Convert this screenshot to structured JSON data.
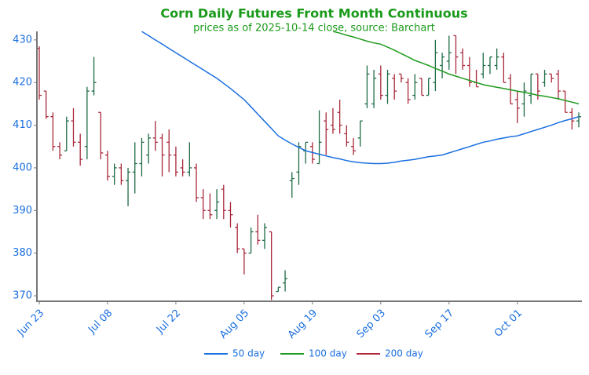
{
  "chart_data": {
    "type": "ohlc",
    "title": "Corn Daily Futures Front Month Continuous",
    "subtitle": "prices as of 2025-10-14 close, source: Barchart",
    "categories": [
      "Jun 23",
      null,
      null,
      null,
      null,
      null,
      null,
      null,
      null,
      null,
      "Jul 08",
      null,
      null,
      null,
      null,
      null,
      null,
      null,
      null,
      null,
      "Jul 22",
      null,
      null,
      null,
      null,
      null,
      null,
      null,
      null,
      null,
      "Aug 05",
      null,
      null,
      null,
      null,
      null,
      null,
      null,
      null,
      null,
      "Aug 19",
      null,
      null,
      null,
      null,
      null,
      null,
      null,
      null,
      null,
      "Sep 03",
      null,
      null,
      null,
      null,
      null,
      null,
      null,
      null,
      null,
      "Sep 17",
      null,
      null,
      null,
      null,
      null,
      null,
      null,
      null,
      null,
      "Oct 01",
      null,
      null,
      null,
      null,
      null,
      null,
      null,
      null,
      null
    ],
    "open": [
      428,
      418,
      412,
      405,
      404,
      411,
      406,
      405,
      418,
      413,
      403,
      398,
      400,
      397,
      399,
      401,
      403,
      407,
      407,
      406,
      403,
      400,
      399,
      400,
      393,
      390,
      390,
      395,
      390,
      386,
      381,
      380,
      385,
      383,
      385,
      371,
      373,
      397,
      399,
      404,
      405,
      401,
      411,
      410,
      413,
      408,
      405,
      407,
      415,
      415,
      422,
      417,
      421,
      422,
      420,
      417,
      421,
      417,
      420,
      424,
      425,
      431,
      427,
      424,
      420,
      422,
      424,
      424,
      426,
      421,
      416,
      415,
      417,
      422,
      420,
      422,
      422,
      418,
      413,
      411
    ],
    "high": [
      428.5,
      418,
      413,
      406,
      412,
      414,
      408,
      419,
      426,
      413,
      404,
      401,
      401,
      400,
      406,
      407,
      408,
      411,
      408,
      409,
      405,
      402,
      406,
      401,
      395,
      394,
      395,
      396,
      392,
      387,
      381,
      386,
      389,
      387,
      385,
      372,
      376,
      399,
      406,
      406,
      406,
      413.5,
      413,
      414,
      416,
      410,
      407,
      411,
      424,
      423,
      424,
      423,
      422,
      422,
      421,
      422,
      421,
      421,
      430,
      427,
      431,
      431,
      428,
      426,
      423,
      427,
      426,
      428,
      427,
      422,
      418,
      420,
      422,
      422,
      423,
      422,
      423,
      418,
      414,
      413
    ],
    "low": [
      416,
      411.5,
      404,
      402,
      404,
      405,
      400.5,
      402,
      417,
      402,
      397,
      396,
      396,
      391,
      394,
      398,
      401,
      404,
      398,
      399,
      398,
      398,
      398,
      392,
      388,
      388,
      388,
      388,
      386,
      380,
      375,
      380,
      382,
      381,
      369,
      371,
      371,
      393,
      396,
      401,
      401,
      401,
      403,
      408,
      408,
      405,
      403,
      405,
      414,
      414,
      416,
      415,
      416,
      420,
      415,
      416,
      417,
      417,
      418,
      421,
      423,
      422,
      423,
      419,
      419,
      421,
      422,
      423,
      420,
      415,
      410.5,
      412,
      415,
      416,
      419,
      420,
      416,
      413,
      409,
      409.5
    ],
    "close": [
      417,
      412,
      405,
      403,
      411,
      406,
      402,
      418,
      420,
      403.5,
      398,
      400,
      397,
      399,
      401,
      406,
      407,
      406,
      403,
      403,
      399,
      399,
      400,
      393,
      390,
      389,
      392,
      390,
      389,
      381,
      380,
      385,
      383,
      386,
      370,
      372,
      374,
      397.5,
      405,
      406,
      402,
      406,
      409,
      409,
      410,
      406,
      404,
      411,
      422,
      421,
      417,
      422,
      418,
      421,
      416,
      420,
      417,
      421,
      427,
      426,
      427,
      426,
      424,
      420,
      419,
      424,
      426,
      426,
      420,
      415,
      414,
      418,
      422,
      418,
      422,
      421,
      418,
      413,
      411,
      412
    ],
    "up_color": "#1e6b45",
    "down_color": "#a8283a",
    "series": [
      {
        "name": "50 day",
        "color": "#1a6fe0",
        "values": [
          null,
          null,
          null,
          null,
          null,
          null,
          null,
          null,
          null,
          null,
          null,
          null,
          null,
          null,
          null,
          432,
          431,
          430,
          429,
          428,
          427,
          426,
          425,
          424,
          423,
          422,
          421,
          419.8,
          418.6,
          417.3,
          416,
          414.3,
          412.6,
          410.9,
          409.2,
          407.5,
          406.5,
          405.6,
          404.8,
          404,
          403.6,
          403.2,
          402.8,
          402.4,
          402.1,
          401.7,
          401.4,
          401.2,
          401.1,
          401,
          401,
          401.1,
          401.3,
          401.6,
          401.8,
          402,
          402.3,
          402.6,
          402.8,
          403,
          403.5,
          404,
          404.5,
          405,
          405.5,
          406,
          406.3,
          406.7,
          407,
          407.3,
          407.5,
          408,
          408.5,
          409,
          409.5,
          410,
          410.6,
          411.1,
          411.5,
          412
        ]
      },
      {
        "name": "100 day",
        "color": "#1e9a1e",
        "values": [
          null,
          null,
          null,
          null,
          null,
          null,
          null,
          null,
          null,
          null,
          null,
          null,
          null,
          null,
          null,
          null,
          null,
          null,
          null,
          null,
          null,
          null,
          null,
          null,
          null,
          null,
          null,
          null,
          null,
          null,
          null,
          null,
          null,
          null,
          null,
          null,
          null,
          null,
          null,
          null,
          null,
          null,
          null,
          432,
          431.6,
          431.1,
          430.7,
          430.2,
          429.7,
          429.3,
          429,
          428.3,
          427.6,
          426.8,
          426,
          425.2,
          424.6,
          424,
          423.3,
          422.7,
          422,
          421.5,
          421,
          420.5,
          420,
          419.5,
          419.2,
          418.9,
          418.6,
          418.3,
          418,
          417.7,
          417.4,
          417,
          416.8,
          416.5,
          416.2,
          415.8,
          415.4,
          415
        ]
      },
      {
        "name": "200 day",
        "color": "#b0283a",
        "values": [
          null,
          null,
          null,
          null,
          null,
          null,
          null,
          null,
          null,
          null,
          null,
          null,
          null,
          null,
          null,
          null,
          null,
          null,
          null,
          null,
          null,
          null,
          null,
          null,
          null,
          null,
          null,
          null,
          null,
          null,
          null,
          null,
          null,
          null,
          null,
          null,
          null,
          null,
          null,
          null,
          null,
          null,
          null,
          null,
          null,
          null,
          null,
          null,
          null,
          null,
          null,
          null,
          null,
          null,
          null,
          null,
          null,
          null,
          null,
          null,
          null,
          null,
          null,
          null,
          null,
          null,
          null,
          null,
          null,
          null,
          null,
          null,
          null,
          null,
          null,
          null,
          null,
          null,
          null,
          null
        ]
      }
    ],
    "ylim": [
      368.9,
      432
    ],
    "yticks": [
      370,
      380,
      390,
      400,
      410,
      420,
      430
    ]
  }
}
